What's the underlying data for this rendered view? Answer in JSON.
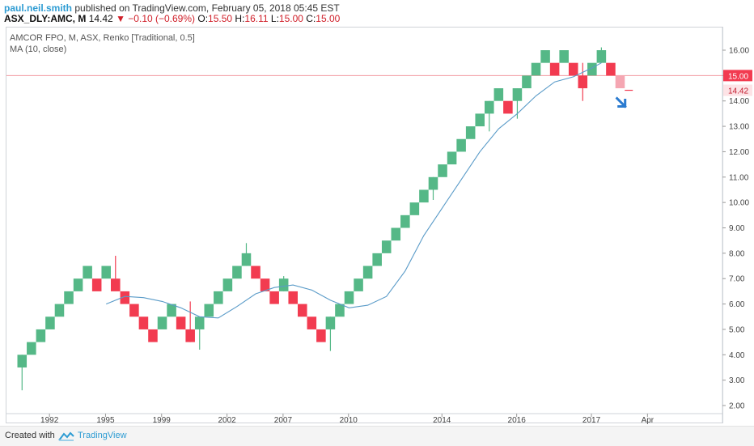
{
  "header": {
    "user": "paul.neil.smith",
    "published": "published on TradingView.com, February 05, 2018 05:45 EST",
    "symbol": "ASX_DLY:AMC, M",
    "last": "14.42",
    "change": "−0.10 (−0.69%)",
    "o_label": "O:",
    "o_value": "15.50",
    "h_label": "H:",
    "h_value": "16.11",
    "l_label": "L:",
    "l_value": "15.00",
    "c_label": "C:",
    "c_value": "15.00"
  },
  "legend": {
    "title": "AMCOR FPO, M, ASX, Renko [Traditional, 0.5]",
    "ma": "MA (10, close)"
  },
  "footer": {
    "created": "Created with",
    "brand": "TradingView"
  },
  "chart_data": {
    "type": "renko",
    "brick_size": 0.5,
    "ylim": [
      1.8,
      16.5
    ],
    "y_ticks": [
      "2.00",
      "3.00",
      "4.00",
      "5.00",
      "6.00",
      "7.00",
      "8.00",
      "9.00",
      "10.00",
      "11.00",
      "12.00",
      "13.00",
      "14.00",
      "15.00",
      "16.00"
    ],
    "x_ticks": [
      {
        "label": "1992",
        "idx": 3
      },
      {
        "label": "1995",
        "idx": 9
      },
      {
        "label": "1999",
        "idx": 15
      },
      {
        "label": "2002",
        "idx": 22
      },
      {
        "label": "2007",
        "idx": 28
      },
      {
        "label": "2010",
        "idx": 35
      },
      {
        "label": "2014",
        "idx": 45
      },
      {
        "label": "2016",
        "idx": 53
      },
      {
        "label": "2017",
        "idx": 61
      },
      {
        "label": "Apr",
        "idx": 67
      }
    ],
    "bricks": [
      {
        "low": 3.5,
        "dir": "up"
      },
      {
        "low": 4.0,
        "dir": "up"
      },
      {
        "low": 4.5,
        "dir": "up"
      },
      {
        "low": 5.0,
        "dir": "up"
      },
      {
        "low": 5.5,
        "dir": "up"
      },
      {
        "low": 6.0,
        "dir": "up"
      },
      {
        "low": 6.5,
        "dir": "up"
      },
      {
        "low": 7.0,
        "dir": "up"
      },
      {
        "low": 6.5,
        "dir": "down"
      },
      {
        "low": 7.0,
        "dir": "up"
      },
      {
        "low": 6.5,
        "dir": "down"
      },
      {
        "low": 6.0,
        "dir": "down"
      },
      {
        "low": 5.5,
        "dir": "down"
      },
      {
        "low": 5.0,
        "dir": "down"
      },
      {
        "low": 4.5,
        "dir": "down"
      },
      {
        "low": 5.0,
        "dir": "up"
      },
      {
        "low": 5.5,
        "dir": "up"
      },
      {
        "low": 5.0,
        "dir": "down"
      },
      {
        "low": 4.5,
        "dir": "down"
      },
      {
        "low": 5.0,
        "dir": "up"
      },
      {
        "low": 5.5,
        "dir": "up"
      },
      {
        "low": 6.0,
        "dir": "up"
      },
      {
        "low": 6.5,
        "dir": "up"
      },
      {
        "low": 7.0,
        "dir": "up"
      },
      {
        "low": 7.5,
        "dir": "up"
      },
      {
        "low": 7.0,
        "dir": "down"
      },
      {
        "low": 6.5,
        "dir": "down"
      },
      {
        "low": 6.0,
        "dir": "down"
      },
      {
        "low": 6.5,
        "dir": "up"
      },
      {
        "low": 6.0,
        "dir": "down"
      },
      {
        "low": 5.5,
        "dir": "down"
      },
      {
        "low": 5.0,
        "dir": "down"
      },
      {
        "low": 4.5,
        "dir": "down"
      },
      {
        "low": 5.0,
        "dir": "up"
      },
      {
        "low": 5.5,
        "dir": "up"
      },
      {
        "low": 6.0,
        "dir": "up"
      },
      {
        "low": 6.5,
        "dir": "up"
      },
      {
        "low": 7.0,
        "dir": "up"
      },
      {
        "low": 7.5,
        "dir": "up"
      },
      {
        "low": 8.0,
        "dir": "up"
      },
      {
        "low": 8.5,
        "dir": "up"
      },
      {
        "low": 9.0,
        "dir": "up"
      },
      {
        "low": 9.5,
        "dir": "up"
      },
      {
        "low": 10.0,
        "dir": "up"
      },
      {
        "low": 10.5,
        "dir": "up"
      },
      {
        "low": 11.0,
        "dir": "up"
      },
      {
        "low": 11.5,
        "dir": "up"
      },
      {
        "low": 12.0,
        "dir": "up"
      },
      {
        "low": 12.5,
        "dir": "up"
      },
      {
        "low": 13.0,
        "dir": "up"
      },
      {
        "low": 13.5,
        "dir": "up"
      },
      {
        "low": 14.0,
        "dir": "up"
      },
      {
        "low": 13.5,
        "dir": "down"
      },
      {
        "low": 14.0,
        "dir": "up"
      },
      {
        "low": 14.5,
        "dir": "up"
      },
      {
        "low": 15.0,
        "dir": "up"
      },
      {
        "low": 15.5,
        "dir": "up"
      },
      {
        "low": 15.0,
        "dir": "down"
      },
      {
        "low": 15.5,
        "dir": "up"
      },
      {
        "low": 15.0,
        "dir": "down"
      },
      {
        "low": 14.5,
        "dir": "down"
      },
      {
        "low": 15.0,
        "dir": "up"
      },
      {
        "low": 15.5,
        "dir": "up"
      },
      {
        "low": 15.0,
        "dir": "down"
      },
      {
        "low": 14.5,
        "dir": "down",
        "pending": true
      }
    ],
    "wicks": [
      {
        "idx": 0,
        "low": 2.6,
        "high": 4.0
      },
      {
        "idx": 10,
        "low": 7.0,
        "high": 7.9
      },
      {
        "idx": 18,
        "low": 4.5,
        "high": 6.1
      },
      {
        "idx": 19,
        "low": 4.2,
        "high": 5.5
      },
      {
        "idx": 24,
        "low": 7.5,
        "high": 8.4
      },
      {
        "idx": 28,
        "low": 6.5,
        "high": 7.1
      },
      {
        "idx": 33,
        "low": 4.15,
        "high": 5.5
      },
      {
        "idx": 44,
        "low": 10.1,
        "high": 11.0
      },
      {
        "idx": 50,
        "low": 12.8,
        "high": 14.0
      },
      {
        "idx": 53,
        "low": 13.3,
        "high": 14.5
      },
      {
        "idx": 60,
        "low": 14.0,
        "high": 15.5
      },
      {
        "idx": 62,
        "low": 15.5,
        "high": 16.11
      }
    ],
    "ma_series": {
      "name": "MA (10, close)",
      "points": [
        [
          9,
          6.0
        ],
        [
          11,
          6.3
        ],
        [
          13,
          6.25
        ],
        [
          15,
          6.1
        ],
        [
          17,
          5.85
        ],
        [
          19,
          5.5
        ],
        [
          21,
          5.45
        ],
        [
          23,
          5.9
        ],
        [
          25,
          6.4
        ],
        [
          27,
          6.65
        ],
        [
          29,
          6.75
        ],
        [
          31,
          6.55
        ],
        [
          33,
          6.15
        ],
        [
          35,
          5.85
        ],
        [
          37,
          5.95
        ],
        [
          39,
          6.3
        ],
        [
          41,
          7.3
        ],
        [
          43,
          8.7
        ],
        [
          45,
          9.8
        ],
        [
          47,
          10.9
        ],
        [
          49,
          12.0
        ],
        [
          51,
          12.9
        ],
        [
          53,
          13.5
        ],
        [
          55,
          14.2
        ],
        [
          57,
          14.75
        ],
        [
          59,
          14.95
        ],
        [
          61,
          15.3
        ],
        [
          62,
          15.5
        ]
      ]
    },
    "current_price": 15.0,
    "last_price": 14.42,
    "colors": {
      "up": "#55b887",
      "down": "#f23b50",
      "ma": "#5a9bc8",
      "price_line": "#f29aa0",
      "pending": "#f5a6b2",
      "arrow": "#2b7bd0"
    }
  }
}
